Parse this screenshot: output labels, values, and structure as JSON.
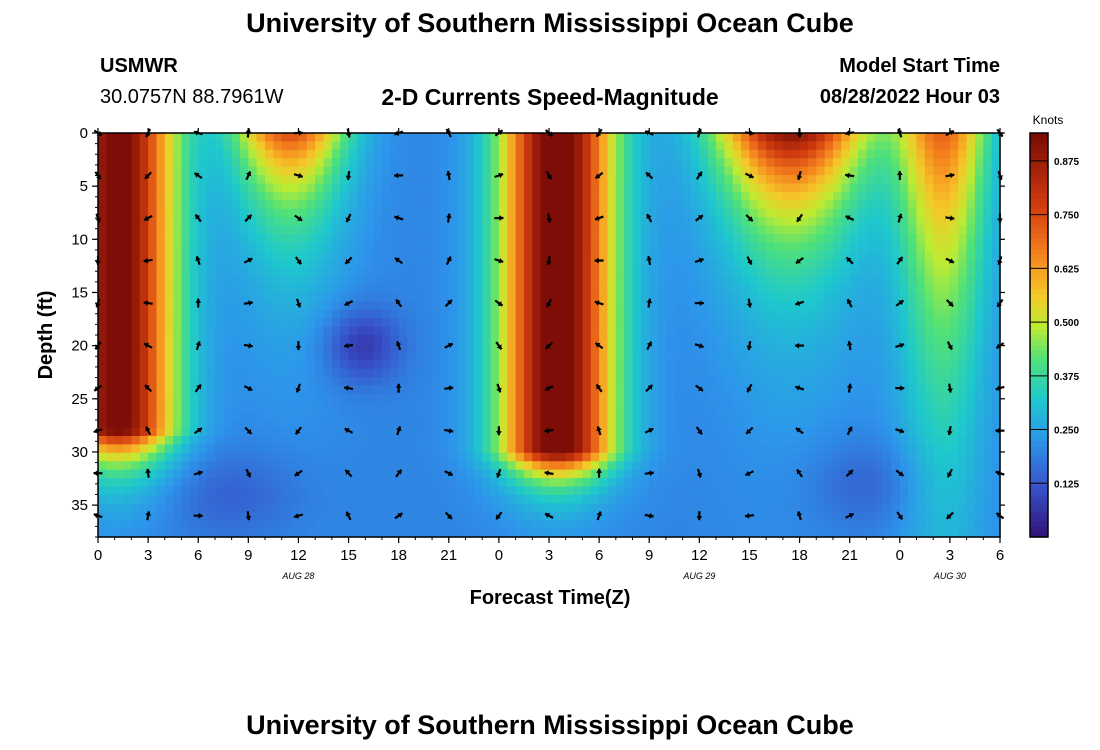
{
  "header": {
    "title": "University of Southern Mississippi Ocean Cube",
    "station_id": "USMWR",
    "station_location": "30.0757N  88.7961W",
    "subtitle": "2-D Currents Speed-Magnitude",
    "model_start_label": "Model Start Time",
    "model_start_value": "08/28/2022 Hour 03"
  },
  "footer": {
    "title": "University of Southern Mississippi Ocean Cube"
  },
  "chart_data": {
    "type": "heatmap",
    "xlabel": "Forecast Time(Z)",
    "ylabel": "Depth (ft)",
    "x_range_hours": [
      0,
      54
    ],
    "ylim": [
      0,
      38
    ],
    "x_tick_labels": [
      "0",
      "3",
      "6",
      "9",
      "12",
      "15",
      "18",
      "21",
      "0",
      "3",
      "6",
      "9",
      "12",
      "15",
      "18",
      "21",
      "0",
      "3",
      "6"
    ],
    "y_ticks": [
      0,
      5,
      10,
      15,
      20,
      25,
      30,
      35
    ],
    "date_labels": [
      {
        "label": "AUG 28",
        "hour": 12
      },
      {
        "label": "AUG 29",
        "hour": 36
      },
      {
        "label": "AUG 30",
        "hour": 51
      }
    ],
    "colorbar": {
      "title": "Knots",
      "min": 0,
      "max": 0.94,
      "ticks": [
        0.125,
        0.25,
        0.375,
        0.5,
        0.625,
        0.75,
        0.875
      ],
      "tick_labels": [
        "0.125",
        "0.250",
        "0.375",
        "0.500",
        "0.625",
        "0.750",
        "0.875"
      ]
    },
    "speed_description": "Speed magnitude in knots as a function of forecast hour and depth; strong currents near 0-27 ft during hours 0-3, 25-33 and 39-45",
    "arrow_grid": {
      "hours": [
        0,
        3,
        6,
        9,
        12,
        15,
        18,
        21,
        24,
        27,
        30,
        33,
        36,
        39,
        42,
        45,
        48,
        51,
        54
      ],
      "depths_ft": [
        0,
        4,
        8,
        12,
        16,
        20,
        24,
        28,
        32,
        36
      ]
    }
  }
}
